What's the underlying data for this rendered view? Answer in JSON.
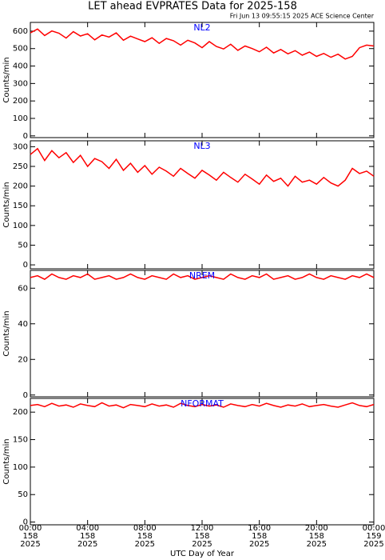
{
  "title": "LET ahead EVPRATES Data for 2025-158",
  "subtitle": "Fri Jun 13 09:55:15 2025 ACE Science Center",
  "xlabel": "UTC Day of Year",
  "xlim": [
    0,
    24
  ],
  "xticks": [
    {
      "value": 0,
      "label": "00:00",
      "day": "158",
      "year": "2025"
    },
    {
      "value": 4,
      "label": "04:00",
      "day": "158",
      "year": "2025"
    },
    {
      "value": 8,
      "label": "08:00",
      "day": "158",
      "year": "2025"
    },
    {
      "value": 12,
      "label": "12:00",
      "day": "158",
      "year": "2025"
    },
    {
      "value": 16,
      "label": "16:00",
      "day": "158",
      "year": "2025"
    },
    {
      "value": 20,
      "label": "20:00",
      "day": "158",
      "year": "2025"
    },
    {
      "value": 24,
      "label": "00:00",
      "day": "159",
      "year": "2025"
    }
  ],
  "chart_data": [
    {
      "type": "line",
      "label": "NL2",
      "ylabel": "Counts/min",
      "color": "#ff0000",
      "ylim": [
        -10,
        650
      ],
      "yticks": [
        0,
        100,
        200,
        300,
        400,
        500,
        600
      ],
      "x": [
        0,
        0.5,
        1,
        1.5,
        2,
        2.5,
        3,
        3.5,
        4,
        4.5,
        5,
        5.5,
        6,
        6.5,
        7,
        7.5,
        8,
        8.5,
        9,
        9.5,
        10,
        10.5,
        11,
        11.5,
        12,
        12.5,
        13,
        13.5,
        14,
        14.5,
        15,
        15.5,
        16,
        16.5,
        17,
        17.5,
        18,
        18.5,
        19,
        19.5,
        20,
        20.5,
        21,
        21.5,
        22,
        22.5,
        23,
        23.5,
        24
      ],
      "values": [
        590,
        612,
        575,
        601,
        588,
        560,
        597,
        572,
        585,
        550,
        578,
        566,
        590,
        548,
        571,
        555,
        540,
        562,
        530,
        558,
        545,
        520,
        548,
        532,
        505,
        540,
        512,
        498,
        525,
        490,
        515,
        500,
        482,
        508,
        475,
        495,
        470,
        488,
        462,
        480,
        455,
        472,
        450,
        468,
        440,
        455,
        505,
        520,
        515
      ]
    },
    {
      "type": "line",
      "label": "NL3",
      "ylabel": "Counts/min",
      "color": "#ff0000",
      "ylim": [
        -10,
        315
      ],
      "yticks": [
        0,
        50,
        100,
        150,
        200,
        250,
        300
      ],
      "x": [
        0,
        0.5,
        1,
        1.5,
        2,
        2.5,
        3,
        3.5,
        4,
        4.5,
        5,
        5.5,
        6,
        6.5,
        7,
        7.5,
        8,
        8.5,
        9,
        9.5,
        10,
        10.5,
        11,
        11.5,
        12,
        12.5,
        13,
        13.5,
        14,
        14.5,
        15,
        15.5,
        16,
        16.5,
        17,
        17.5,
        18,
        18.5,
        19,
        19.5,
        20,
        20.5,
        21,
        21.5,
        22,
        22.5,
        23,
        23.5,
        24
      ],
      "values": [
        280,
        295,
        265,
        290,
        272,
        285,
        260,
        278,
        250,
        270,
        262,
        245,
        268,
        240,
        258,
        235,
        252,
        230,
        248,
        238,
        225,
        245,
        232,
        220,
        240,
        228,
        215,
        235,
        222,
        210,
        230,
        218,
        205,
        228,
        212,
        220,
        200,
        225,
        210,
        215,
        205,
        222,
        208,
        200,
        215,
        245,
        232,
        238,
        225
      ]
    },
    {
      "type": "line",
      "label": "NREM",
      "ylabel": "Counts/min",
      "color": "#ff0000",
      "ylim": [
        -1,
        70
      ],
      "yticks": [
        0,
        20,
        40,
        60
      ],
      "x": [
        0,
        0.5,
        1,
        1.5,
        2,
        2.5,
        3,
        3.5,
        4,
        4.5,
        5,
        5.5,
        6,
        6.5,
        7,
        7.5,
        8,
        8.5,
        9,
        9.5,
        10,
        10.5,
        11,
        11.5,
        12,
        12.5,
        13,
        13.5,
        14,
        14.5,
        15,
        15.5,
        16,
        16.5,
        17,
        17.5,
        18,
        18.5,
        19,
        19.5,
        20,
        20.5,
        21,
        21.5,
        22,
        22.5,
        23,
        23.5,
        24
      ],
      "values": [
        66,
        67,
        65,
        68,
        66,
        65,
        67,
        66,
        68,
        65,
        66,
        67,
        65,
        66,
        68,
        66,
        65,
        67,
        66,
        65,
        68,
        66,
        67,
        65,
        66,
        67,
        66,
        65,
        68,
        66,
        65,
        67,
        66,
        68,
        65,
        66,
        67,
        65,
        66,
        68,
        66,
        65,
        67,
        66,
        65,
        67,
        66,
        68,
        66
      ]
    },
    {
      "type": "line",
      "label": "NFORMAT",
      "ylabel": "Counts/min",
      "color": "#ff0000",
      "ylim": [
        -5,
        225
      ],
      "yticks": [
        0,
        50,
        100,
        150,
        200
      ],
      "x": [
        0,
        0.5,
        1,
        1.5,
        2,
        2.5,
        3,
        3.5,
        4,
        4.5,
        5,
        5.5,
        6,
        6.5,
        7,
        7.5,
        8,
        8.5,
        9,
        9.5,
        10,
        10.5,
        11,
        11.5,
        12,
        12.5,
        13,
        13.5,
        14,
        14.5,
        15,
        15.5,
        16,
        16.5,
        17,
        17.5,
        18,
        18.5,
        19,
        19.5,
        20,
        20.5,
        21,
        21.5,
        22,
        22.5,
        23,
        23.5,
        24
      ],
      "values": [
        212,
        214,
        210,
        216,
        211,
        213,
        209,
        215,
        212,
        210,
        217,
        211,
        213,
        208,
        214,
        212,
        210,
        215,
        211,
        213,
        209,
        216,
        212,
        210,
        214,
        211,
        213,
        209,
        215,
        212,
        210,
        214,
        211,
        216,
        212,
        209,
        213,
        211,
        215,
        210,
        212,
        214,
        211,
        209,
        213,
        217,
        212,
        210,
        214
      ]
    }
  ]
}
